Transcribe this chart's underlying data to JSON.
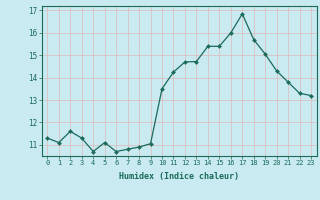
{
  "x": [
    0,
    1,
    2,
    3,
    4,
    5,
    6,
    7,
    8,
    9,
    10,
    11,
    12,
    13,
    14,
    15,
    16,
    17,
    18,
    19,
    20,
    21,
    22,
    23
  ],
  "y": [
    11.3,
    11.1,
    11.6,
    11.3,
    10.7,
    11.1,
    10.7,
    10.8,
    10.9,
    11.05,
    13.5,
    14.25,
    14.7,
    14.72,
    15.4,
    15.4,
    16.0,
    16.85,
    15.7,
    15.05,
    14.3,
    13.8,
    13.3,
    13.2
  ],
  "line_color": "#1a6b5a",
  "marker": "D",
  "marker_size": 2.0,
  "xlabel": "Humidex (Indice chaleur)",
  "xlim": [
    -0.5,
    23.5
  ],
  "ylim": [
    10.5,
    17.2
  ],
  "yticks": [
    11,
    12,
    13,
    14,
    15,
    16,
    17
  ],
  "xtick_labels": [
    "0",
    "1",
    "2",
    "3",
    "4",
    "5",
    "6",
    "7",
    "8",
    "9",
    "10",
    "11",
    "12",
    "13",
    "14",
    "15",
    "16",
    "17",
    "18",
    "19",
    "20",
    "21",
    "22",
    "23"
  ],
  "bg_color": "#c8eaf0",
  "grid_color": "#e0b8b8",
  "axis_color": "#1a6b5a",
  "font_color": "#1a6b5a"
}
